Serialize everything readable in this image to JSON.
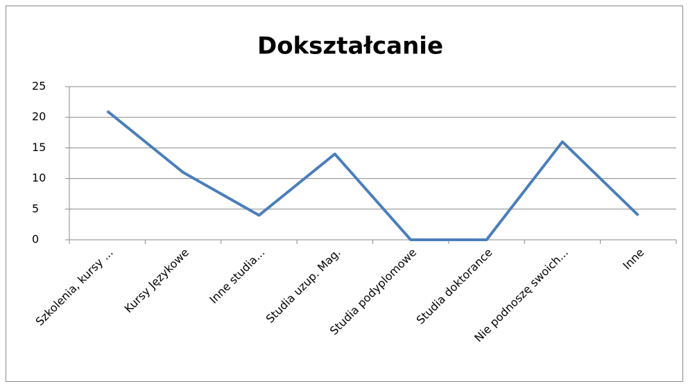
{
  "chart_data": {
    "type": "line",
    "title": "Dokształcanie",
    "categories": [
      "Szkolenia, kursy ...",
      "Kursy Językowe",
      "Inne studia...",
      "Studia uzup. Mag.",
      "Studia podyplomowe",
      "Studia doktorance",
      "Nie podnoszę swoich...",
      "Inne"
    ],
    "values": [
      21,
      11,
      4,
      14,
      0,
      0,
      16,
      4
    ],
    "color": "#4a7ebb",
    "ylim": [
      0,
      25
    ],
    "yticks": [
      0,
      5,
      10,
      15,
      20,
      25
    ],
    "grid": true
  }
}
